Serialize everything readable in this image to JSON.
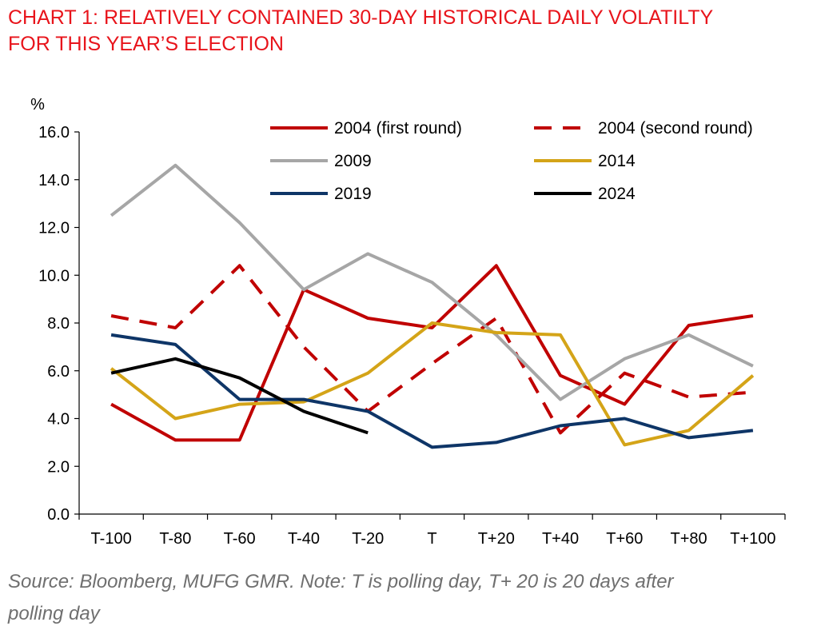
{
  "title_lines": [
    "CHART 1: RELATIVELY CONTAINED 30-DAY HISTORICAL DAILY VOLATILTY",
    "FOR THIS YEAR’S ELECTION"
  ],
  "source_lines": [
    "Source: Bloomberg, MUFG GMR. Note: T is polling day, T+ 20 is 20 days after",
    "polling day"
  ],
  "chart_data": {
    "type": "line",
    "ylabel": "%",
    "ylim": [
      0,
      16
    ],
    "yticks": [
      "0.0",
      "2.0",
      "4.0",
      "6.0",
      "8.0",
      "10.0",
      "12.0",
      "14.0",
      "16.0"
    ],
    "categories": [
      "T-100",
      "T-80",
      "T-60",
      "T-40",
      "T-20",
      "T",
      "T+20",
      "T+40",
      "T+60",
      "T+80",
      "T+100"
    ],
    "legend_position": "top-right",
    "grid": false,
    "series": [
      {
        "name": "2004 (first round)",
        "color": "#c00000",
        "dash": "solid",
        "values": [
          4.6,
          3.1,
          3.1,
          9.4,
          8.2,
          7.8,
          10.4,
          5.8,
          4.6,
          7.9,
          8.3
        ]
      },
      {
        "name": "2004 (second round)",
        "color": "#c00000",
        "dash": "dashed",
        "values": [
          8.3,
          7.8,
          10.4,
          7.0,
          4.3,
          6.3,
          8.2,
          3.4,
          5.9,
          4.9,
          5.1
        ]
      },
      {
        "name": "2009",
        "color": "#a6a6a6",
        "dash": "solid",
        "values": [
          12.5,
          14.6,
          12.2,
          9.4,
          10.9,
          9.7,
          7.5,
          4.8,
          6.5,
          7.5,
          6.2
        ]
      },
      {
        "name": "2014",
        "color": "#d4a418",
        "dash": "solid",
        "values": [
          6.1,
          4.0,
          4.6,
          4.7,
          5.9,
          8.0,
          7.6,
          7.5,
          2.9,
          3.5,
          5.8
        ]
      },
      {
        "name": "2019",
        "color": "#0e3567",
        "dash": "solid",
        "values": [
          7.5,
          7.1,
          4.8,
          4.8,
          4.3,
          2.8,
          3.0,
          3.7,
          4.0,
          3.2,
          3.5
        ]
      },
      {
        "name": "2024",
        "color": "#000000",
        "dash": "solid",
        "values": [
          5.9,
          6.5,
          5.7,
          4.3,
          3.4,
          null,
          null,
          null,
          null,
          null,
          null
        ]
      }
    ]
  }
}
